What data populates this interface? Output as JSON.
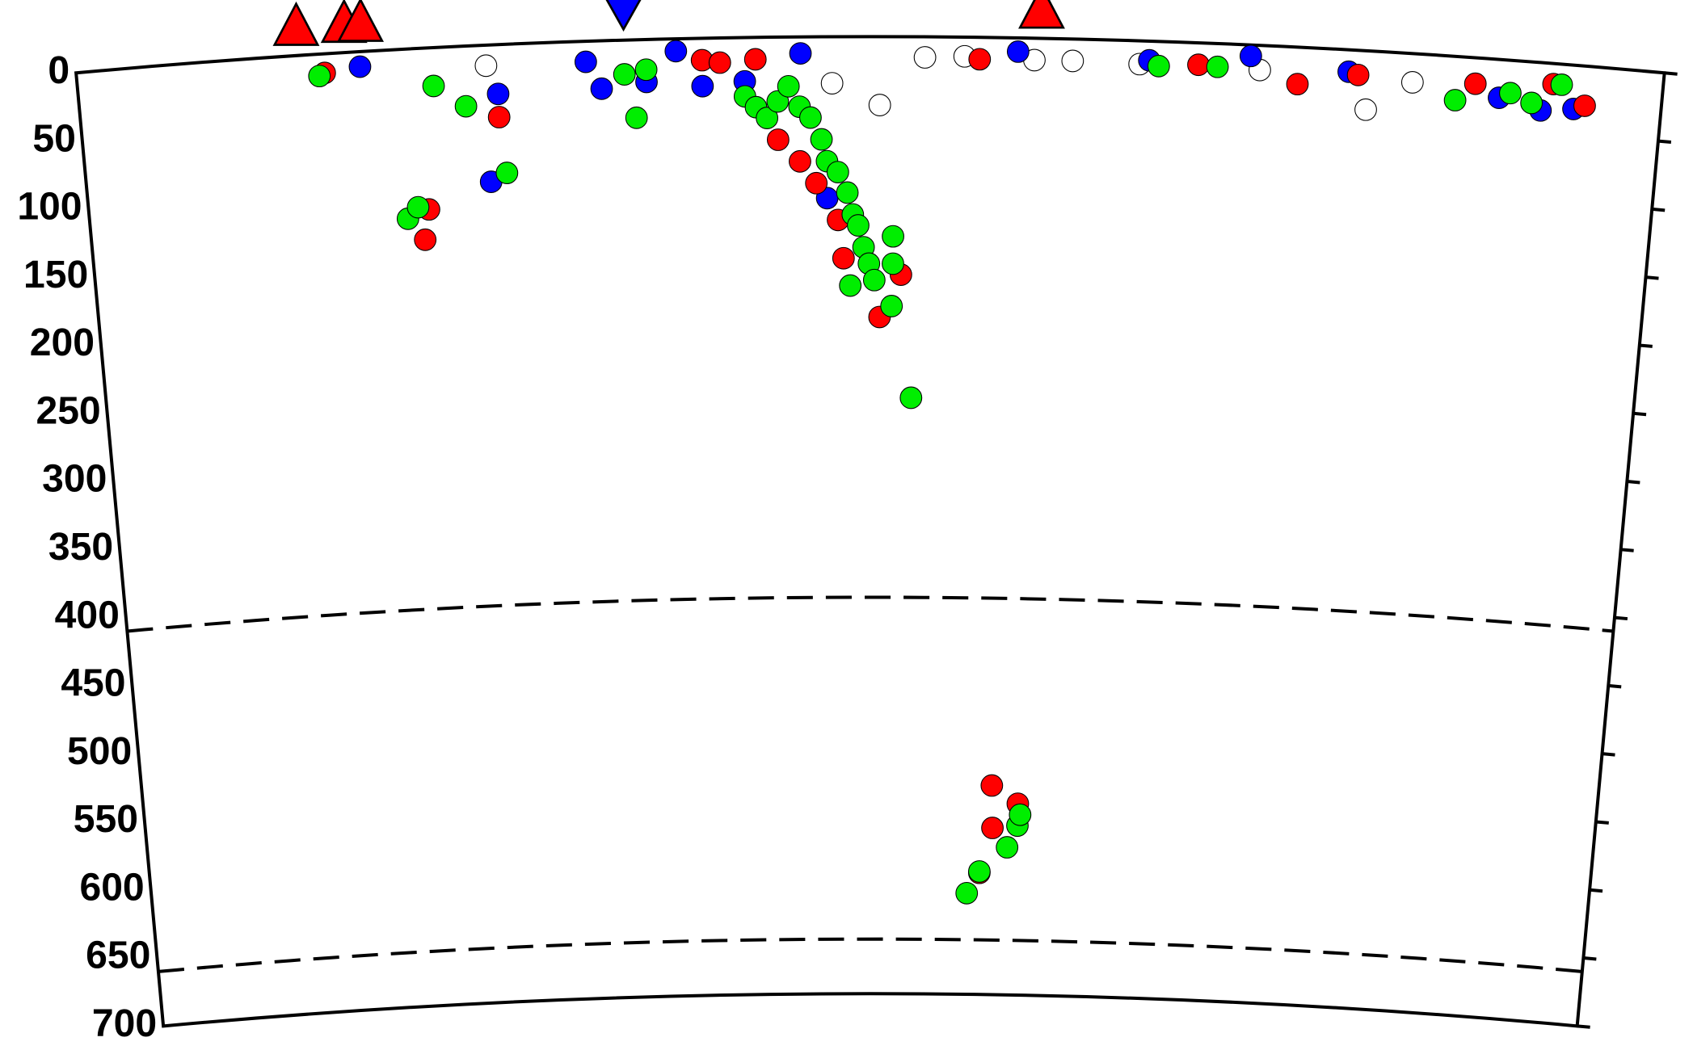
{
  "chart_data": {
    "type": "scatter",
    "xlim": [
      0,
      1160
    ],
    "ylim": [
      0,
      700
    ],
    "yticks": [
      0,
      50,
      100,
      150,
      200,
      250,
      300,
      350,
      400,
      450,
      500,
      550,
      600,
      650,
      700
    ],
    "y_inverted": true,
    "reference_lines": [
      410,
      660
    ],
    "markers": [
      {
        "shape": "triangle-up",
        "color": "#ff0000",
        "x": [
          161,
          196,
          208,
          705
        ]
      },
      {
        "shape": "triangle-down",
        "color": "#0000ff",
        "x": [
          400
        ]
      }
    ],
    "series": [
      {
        "color": "#ffffff",
        "x": [
          299,
          552,
          587,
          620,
          649,
          728,
          777,
          865,
          944,
          977,
          700
        ],
        "values": [
          15,
          34,
          50,
          15,
          14,
          16,
          17,
          18,
          43,
          21,
          16
        ]
      },
      {
        "color": "#0000ff",
        "x": [
          207,
          307,
          299,
          372,
          383,
          416,
          438,
          457,
          488,
          529,
          548,
          688,
          784,
          858,
          930,
          1041,
          1072,
          1096
        ],
        "values": [
          11,
          36,
          100,
          15,
          35,
          31,
          9,
          35,
          32,
          12,
          118,
          10,
          14,
          8,
          16,
          28,
          35,
          32
        ]
      },
      {
        "color": "#ff0000",
        "x": [
          181,
          307,
          252,
          248,
          457,
          470,
          496,
          512,
          528,
          540,
          556,
          560,
          587,
          603,
          678,
          677,
          698,
          668,
          660,
          820,
          893,
          937,
          1023,
          1080,
          1104
        ],
        "values": [
          14,
          53,
          118,
          140,
          16,
          18,
          16,
          75,
          91,
          107,
          134,
          162,
          205,
          174,
          578,
          547,
          560,
          611,
          16,
          16,
          27,
          18,
          19,
          15,
          29
        ]
      },
      {
        "color": "#00ee00",
        "x": [
          177,
          260,
          283,
          408,
          416,
          400,
          311,
          236,
          244,
          488,
          496,
          504,
          512,
          520,
          528,
          536,
          544,
          548,
          556,
          563,
          567,
          571,
          575,
          579,
          583,
          565,
          597,
          597,
          596,
          611,
          658,
          668,
          690,
          698,
          700,
          791,
          834,
          1009,
          1049,
          1065,
          1086
        ],
        "values": [
          16,
          28,
          44,
          57,
          22,
          25,
          94,
          124,
          116,
          43,
          51,
          59,
          47,
          36,
          51,
          59,
          75,
          91,
          99,
          114,
          130,
          138,
          154,
          166,
          178,
          182,
          146,
          166,
          197,
          264,
          626,
          610,
          592,
          576,
          568,
          18,
          17,
          32,
          24,
          30,
          15
        ]
      }
    ]
  }
}
